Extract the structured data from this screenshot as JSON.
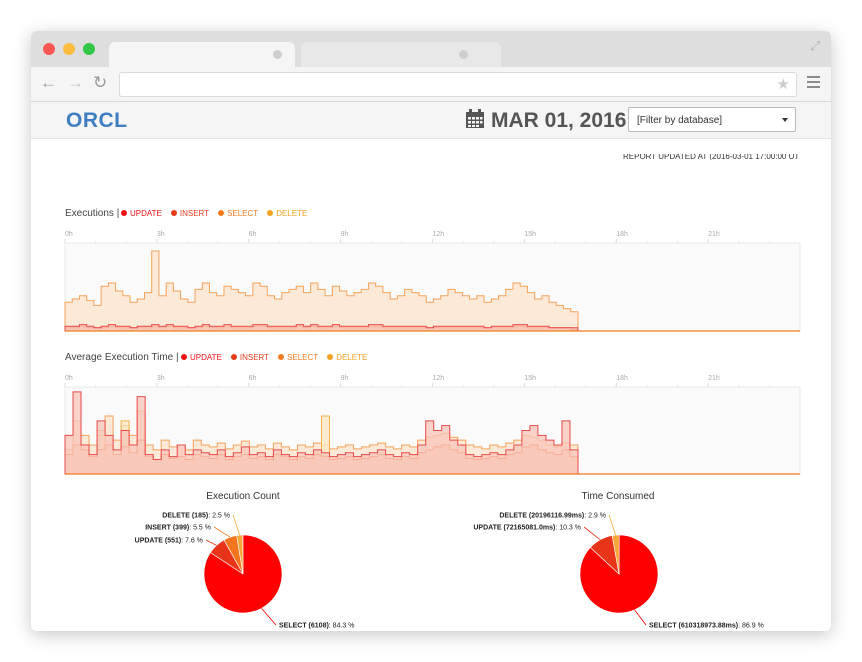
{
  "app": {
    "brand": "ORCL",
    "date": "MAR 01, 2016"
  },
  "filter": {
    "selected": "[Filter by database]"
  },
  "report_updated": "REPORT UPDATED AT (2016-03-01 17:00:00 UTC)",
  "legend_items": [
    {
      "label": "UPDATE",
      "color": "#ee1111"
    },
    {
      "label": "INSERT",
      "color": "#e63b1a"
    },
    {
      "label": "SELECT",
      "color": "#f57c20"
    },
    {
      "label": "DELETE",
      "color": "#f2a122"
    }
  ],
  "axis_hours": [
    "0h",
    "3h",
    "6h",
    "9h",
    "12h",
    "15h",
    "18h",
    "21h"
  ],
  "charts": {
    "executions": {
      "title": "Executions |"
    },
    "avg_time": {
      "title": "Average Execution Time |"
    }
  },
  "pies": {
    "count": {
      "title": "Execution Count"
    },
    "time": {
      "title": "Time Consumed"
    }
  },
  "chart_data": [
    {
      "type": "area",
      "title": "Executions",
      "x_ticks": [
        "0h",
        "3h",
        "6h",
        "9h",
        "12h",
        "15h",
        "18h",
        "21h"
      ],
      "x_range": [
        0,
        24
      ],
      "series": [
        {
          "name": "SELECT",
          "values": [
            18,
            20,
            22,
            19,
            16,
            28,
            30,
            25,
            22,
            18,
            20,
            24,
            50,
            22,
            30,
            25,
            20,
            18,
            26,
            30,
            24,
            22,
            28,
            26,
            24,
            22,
            30,
            28,
            22,
            20,
            24,
            26,
            28,
            24,
            30,
            26,
            22,
            28,
            25,
            22,
            24,
            26,
            30,
            28,
            24,
            20,
            22,
            26,
            24,
            22,
            18,
            20,
            22,
            26,
            24,
            22,
            20,
            22,
            18,
            20,
            22,
            26,
            30,
            28,
            24,
            20,
            22,
            18,
            16,
            14,
            12
          ]
        },
        {
          "name": "UPDATE",
          "values": [
            3,
            3,
            4,
            3,
            2,
            3,
            4,
            3,
            3,
            2,
            3,
            3,
            4,
            3,
            4,
            3,
            3,
            2,
            3,
            4,
            3,
            3,
            4,
            3,
            3,
            3,
            4,
            4,
            3,
            3,
            3,
            3,
            4,
            3,
            4,
            3,
            3,
            4,
            3,
            3,
            3,
            3,
            4,
            4,
            3,
            3,
            3,
            3,
            3,
            3,
            2,
            3,
            3,
            3,
            3,
            3,
            3,
            3,
            2,
            3,
            3,
            3,
            4,
            4,
            3,
            3,
            3,
            2,
            2,
            2,
            2
          ]
        },
        {
          "name": "INSERT",
          "values": [
            2,
            2,
            3,
            2,
            2,
            2,
            3,
            2,
            2,
            2,
            2,
            2,
            3,
            2,
            3,
            2,
            2,
            2,
            2,
            3,
            2,
            2,
            3,
            2,
            2,
            2,
            3,
            3,
            2,
            2,
            2,
            2,
            3,
            2,
            3,
            2,
            2,
            3,
            2,
            2,
            2,
            2,
            3,
            3,
            2,
            2,
            2,
            2,
            2,
            2,
            2,
            2,
            2,
            2,
            2,
            2,
            2,
            2,
            2,
            2,
            2,
            2,
            3,
            3,
            2,
            2,
            2,
            2,
            2,
            2,
            1
          ]
        },
        {
          "name": "DELETE",
          "values": [
            1,
            1,
            1,
            1,
            1,
            1,
            2,
            1,
            1,
            1,
            1,
            1,
            2,
            1,
            2,
            1,
            1,
            1,
            1,
            2,
            1,
            1,
            2,
            1,
            1,
            1,
            2,
            2,
            1,
            1,
            1,
            1,
            2,
            1,
            2,
            1,
            1,
            2,
            1,
            1,
            1,
            1,
            2,
            2,
            1,
            1,
            1,
            1,
            1,
            1,
            1,
            1,
            1,
            1,
            1,
            1,
            1,
            1,
            1,
            1,
            1,
            1,
            2,
            2,
            1,
            1,
            1,
            1,
            1,
            1,
            1
          ]
        }
      ]
    },
    {
      "type": "area",
      "title": "Average Execution Time",
      "x_ticks": [
        "0h",
        "3h",
        "6h",
        "9h",
        "12h",
        "15h",
        "18h",
        "21h"
      ],
      "x_range": [
        0,
        24
      ],
      "series": [
        {
          "name": "SELECT",
          "values": [
            25,
            55,
            40,
            30,
            45,
            60,
            35,
            50,
            40,
            65,
            30,
            25,
            35,
            28,
            30,
            25,
            35,
            30,
            28,
            32,
            26,
            30,
            34,
            28,
            30,
            26,
            32,
            28,
            25,
            30,
            28,
            32,
            30,
            26,
            28,
            30,
            26,
            28,
            30,
            32,
            28,
            26,
            30,
            28,
            35,
            38,
            40,
            42,
            38,
            35,
            30,
            28,
            26,
            30,
            28,
            32,
            35,
            40,
            38,
            35,
            30,
            28,
            32,
            30
          ]
        },
        {
          "name": "UPDATE",
          "values": [
            40,
            85,
            30,
            20,
            55,
            40,
            25,
            45,
            30,
            80,
            20,
            15,
            25,
            18,
            30,
            20,
            25,
            22,
            20,
            25,
            18,
            22,
            28,
            20,
            22,
            18,
            25,
            20,
            18,
            22,
            20,
            25,
            22,
            18,
            20,
            22,
            18,
            20,
            22,
            25,
            20,
            18,
            22,
            20,
            30,
            55,
            45,
            50,
            35,
            30,
            20,
            18,
            20,
            22,
            20,
            25,
            30,
            45,
            50,
            40,
            35,
            30,
            55,
            25
          ]
        },
        {
          "name": "INSERT",
          "values": [
            20,
            30,
            25,
            18,
            25,
            30,
            20,
            28,
            22,
            35,
            18,
            15,
            20,
            16,
            18,
            15,
            20,
            18,
            16,
            20,
            15,
            18,
            20,
            16,
            18,
            15,
            20,
            18,
            15,
            18,
            16,
            20,
            18,
            15,
            16,
            18,
            15,
            16,
            18,
            20,
            16,
            15,
            18,
            16,
            22,
            25,
            28,
            30,
            25,
            22,
            16,
            15,
            16,
            18,
            16,
            20,
            22,
            28,
            30,
            25,
            22,
            20,
            25,
            18
          ]
        },
        {
          "name": "DELETE",
          "values": [
            15,
            20,
            18,
            14,
            40,
            20,
            15,
            55,
            18,
            25,
            14,
            12,
            15,
            13,
            14,
            12,
            15,
            14,
            12,
            15,
            12,
            14,
            15,
            13,
            14,
            12,
            15,
            14,
            12,
            14,
            13,
            15,
            60,
            12,
            13,
            14,
            12,
            13,
            14,
            15,
            13,
            12,
            14,
            13,
            16,
            18,
            20,
            22,
            18,
            16,
            13,
            12,
            13,
            14,
            13,
            15,
            16,
            20,
            22,
            18,
            16,
            15,
            18,
            14
          ]
        }
      ]
    },
    {
      "type": "pie",
      "title": "Execution Count",
      "slices": [
        {
          "name": "SELECT",
          "count": 6108,
          "percent": 84.3,
          "label": "SELECT (6108)",
          "pct_text": ": 84.3 %",
          "color": "#ff0000"
        },
        {
          "name": "UPDATE",
          "count": 551,
          "percent": 7.6,
          "label": "UPDATE (551)",
          "pct_text": ": 7.6 %",
          "color": "#e83418"
        },
        {
          "name": "INSERT",
          "count": 399,
          "percent": 5.5,
          "label": "INSERT (399)",
          "pct_text": ": 5.5 %",
          "color": "#f5751f"
        },
        {
          "name": "DELETE",
          "count": 185,
          "percent": 2.5,
          "label": "DELETE (185)",
          "pct_text": ": 2.5 %",
          "color": "#f7a63a"
        }
      ]
    },
    {
      "type": "pie",
      "title": "Time Consumed",
      "slices": [
        {
          "name": "SELECT",
          "ms": 610318973.88,
          "percent": 86.9,
          "label": "SELECT (610318973.88ms)",
          "pct_text": ": 86.9 %",
          "color": "#ff0000"
        },
        {
          "name": "UPDATE",
          "ms": 72165081.0,
          "percent": 10.3,
          "label": "UPDATE (72165081.0ms)",
          "pct_text": ": 10.3 %",
          "color": "#e83418"
        },
        {
          "name": "DELETE",
          "ms": 20196116.99,
          "percent": 2.9,
          "label": "DELETE (20196116.99ms)",
          "pct_text": ": 2.9 %",
          "color": "#f7a63a"
        }
      ]
    }
  ]
}
